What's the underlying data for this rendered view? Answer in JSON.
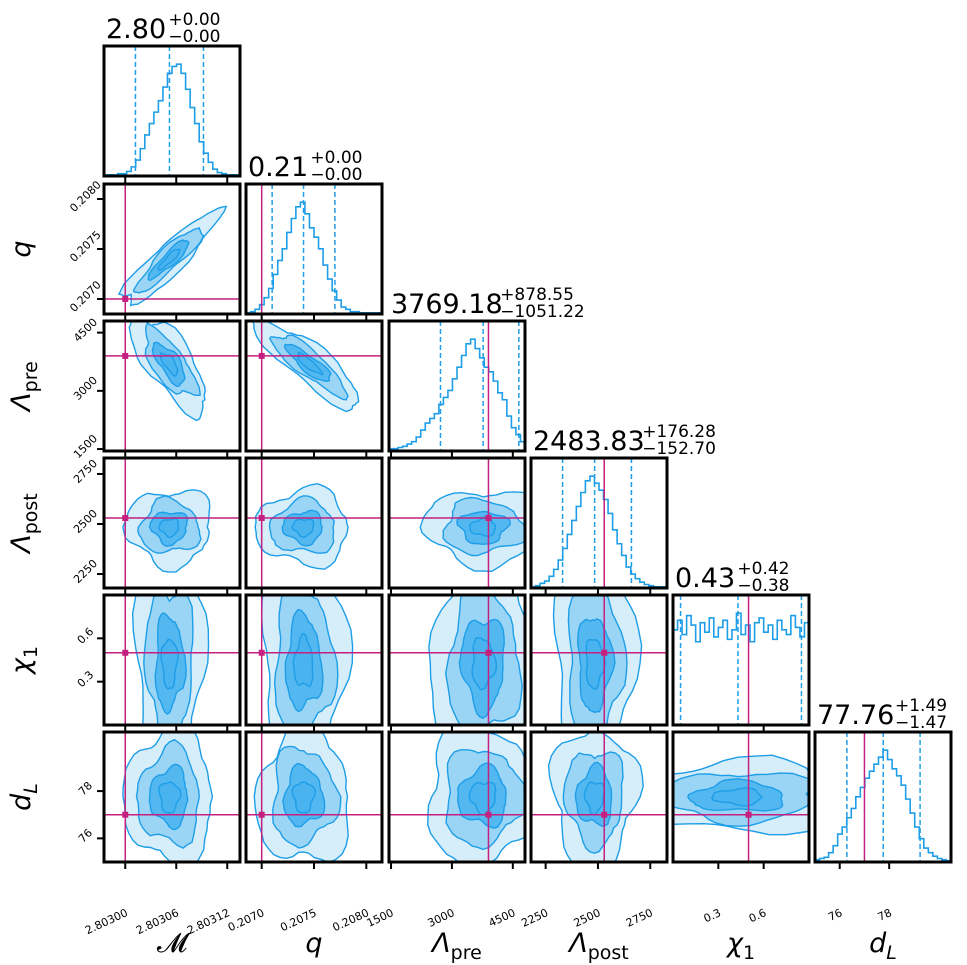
{
  "figure": {
    "type": "corner-plot",
    "colors": {
      "posterior": "#1e9ee8",
      "fill_light": "#cfeaf9",
      "fill_mid": "#8fd0f3",
      "fill_dark": "#47b2ee",
      "truth": "#c42080",
      "frame": "#000000"
    }
  },
  "chart_data": {
    "type": "corner",
    "parameters": [
      {
        "key": "Mc",
        "label": "𝓜",
        "tex": "M",
        "sub": "",
        "title": "2.80",
        "plus": "+0.00",
        "minus": "−0.00",
        "range": [
          2.802975,
          2.803135
        ],
        "truth": 2.803,
        "median": 2.803052,
        "q16": 2.803012,
        "q84": 2.803092,
        "ticks": [
          2.803,
          2.80306,
          2.80312
        ],
        "tick_labels": [
          "2.80300",
          "2.80306",
          "2.80312"
        ],
        "hist": [
          1,
          1,
          1,
          2,
          2,
          4,
          8,
          14,
          24,
          36,
          46,
          56,
          66,
          78,
          90,
          96,
          98,
          90,
          76,
          60,
          46,
          30,
          20,
          12,
          6,
          3,
          2,
          1,
          1,
          1
        ]
      },
      {
        "key": "q",
        "label": "q",
        "tex": "q",
        "sub": "",
        "title": "0.21",
        "plus": "+0.00",
        "minus": "−0.00",
        "range": [
          0.20685,
          0.20815
        ],
        "truth": 0.207,
        "median": 0.2074,
        "q16": 0.2071,
        "q84": 0.2077,
        "ticks": [
          0.207,
          0.2075,
          0.208
        ],
        "tick_labels": [
          "0.2070",
          "0.2075",
          "0.2080"
        ],
        "hist": [
          1,
          2,
          4,
          8,
          14,
          22,
          34,
          46,
          56,
          70,
          82,
          92,
          96,
          86,
          74,
          66,
          56,
          42,
          30,
          20,
          12,
          6,
          4,
          2,
          2,
          1,
          1,
          1,
          1,
          1
        ]
      },
      {
        "key": "Lpre",
        "label": "Λpre",
        "tex": "Λ",
        "sub": "pre",
        "title": "3769.18",
        "plus": "+878.55",
        "minus": "−1051.22",
        "range": [
          1450,
          4800
        ],
        "truth": 3900,
        "median": 3769,
        "q16": 2718,
        "q84": 4648,
        "ticks": [
          1500,
          3000,
          4500
        ],
        "tick_labels": [
          "1500",
          "3000",
          "4500"
        ],
        "hist": [
          2,
          2,
          3,
          4,
          6,
          8,
          12,
          18,
          24,
          28,
          32,
          40,
          46,
          52,
          62,
          72,
          82,
          92,
          96,
          88,
          80,
          72,
          68,
          60,
          50,
          44,
          30,
          20,
          14,
          8
        ]
      },
      {
        "key": "Lpost",
        "label": "Λpost",
        "tex": "Λ",
        "sub": "post",
        "title": "2483.83",
        "plus": "+176.28",
        "minus": "−152.70",
        "range": [
          2180,
          2830
        ],
        "truth": 2530,
        "median": 2484,
        "q16": 2331,
        "q84": 2660,
        "ticks": [
          2250,
          2500,
          2750
        ],
        "tick_labels": [
          "2250",
          "2500",
          "2750"
        ],
        "hist": [
          1,
          2,
          4,
          6,
          10,
          16,
          24,
          34,
          46,
          58,
          70,
          82,
          92,
          96,
          90,
          84,
          76,
          64,
          50,
          38,
          28,
          18,
          12,
          8,
          5,
          3,
          2,
          1,
          1,
          1
        ]
      },
      {
        "key": "chi1",
        "label": "χ1",
        "tex": "χ",
        "sub": "1",
        "title": "0.43",
        "plus": "+0.42",
        "minus": "−0.38",
        "range": [
          0.0,
          0.9
        ],
        "truth": 0.5,
        "median": 0.43,
        "q16": 0.05,
        "q84": 0.85,
        "ticks": [
          0.3,
          0.6
        ],
        "tick_labels": [
          "0.3",
          "0.6"
        ],
        "hist": [
          80,
          88,
          76,
          92,
          84,
          70,
          86,
          78,
          90,
          74,
          82,
          88,
          72,
          80,
          94,
          76,
          84,
          70,
          86,
          90,
          78,
          84,
          72,
          88,
          80,
          76,
          92,
          82,
          74,
          86
        ]
      },
      {
        "key": "dL",
        "label": "dL",
        "tex": "d",
        "sub": "L",
        "title": "77.76",
        "plus": "+1.49",
        "minus": "−1.47",
        "range": [
          75.0,
          80.5
        ],
        "truth": 77.0,
        "median": 77.76,
        "q16": 76.29,
        "q84": 79.25,
        "ticks": [
          76,
          78
        ],
        "tick_labels": [
          "76",
          "78"
        ],
        "hist": [
          2,
          3,
          4,
          8,
          14,
          24,
          30,
          38,
          46,
          56,
          64,
          72,
          78,
          84,
          90,
          96,
          88,
          80,
          74,
          66,
          54,
          42,
          30,
          20,
          12,
          8,
          5,
          3,
          2,
          1
        ]
      }
    ],
    "panels_2d": [
      {
        "row": 1,
        "col": 0,
        "center": [
          2.803052,
          0.2074
        ],
        "sigma": [
          2.8e-05,
          0.00023
        ],
        "rho": 0.9
      },
      {
        "row": 2,
        "col": 0,
        "center": [
          2.803052,
          3700
        ],
        "sigma": [
          2.2e-05,
          620
        ],
        "rho": -0.7
      },
      {
        "row": 2,
        "col": 1,
        "center": [
          0.20745,
          3700
        ],
        "sigma": [
          0.00025,
          560
        ],
        "rho": -0.85
      },
      {
        "row": 3,
        "col": 0,
        "center": [
          2.803052,
          2484
        ],
        "sigma": [
          2.5e-05,
          95
        ],
        "rho": 0.0
      },
      {
        "row": 3,
        "col": 1,
        "center": [
          0.2074,
          2484
        ],
        "sigma": [
          0.00022,
          95
        ],
        "rho": 0.0
      },
      {
        "row": 3,
        "col": 2,
        "center": [
          3769,
          2484
        ],
        "sigma": [
          700,
          95
        ],
        "rho": 0.0
      },
      {
        "row": 4,
        "col": 0,
        "center": [
          2.803052,
          0.43
        ],
        "sigma": [
          2e-05,
          0.38
        ],
        "rho": 0.0
      },
      {
        "row": 4,
        "col": 1,
        "center": [
          0.2074,
          0.43
        ],
        "sigma": [
          0.0002,
          0.38
        ],
        "rho": 0.0
      },
      {
        "row": 4,
        "col": 2,
        "center": [
          3769,
          0.43
        ],
        "sigma": [
          620,
          0.38
        ],
        "rho": 0.0
      },
      {
        "row": 4,
        "col": 3,
        "center": [
          2484,
          0.43
        ],
        "sigma": [
          95,
          0.38
        ],
        "rho": 0.0
      },
      {
        "row": 5,
        "col": 0,
        "center": [
          2.803052,
          77.76
        ],
        "sigma": [
          2.6e-05,
          1.45
        ],
        "rho": 0.0
      },
      {
        "row": 5,
        "col": 1,
        "center": [
          0.2074,
          77.76
        ],
        "sigma": [
          0.00022,
          1.45
        ],
        "rho": 0.0
      },
      {
        "row": 5,
        "col": 2,
        "center": [
          3769,
          77.76
        ],
        "sigma": [
          700,
          1.45
        ],
        "rho": 0.0
      },
      {
        "row": 5,
        "col": 3,
        "center": [
          2484,
          77.76
        ],
        "sigma": [
          100,
          1.45
        ],
        "rho": 0.0
      },
      {
        "row": 5,
        "col": 4,
        "center": [
          0.43,
          77.76
        ],
        "sigma": [
          0.36,
          0.75
        ],
        "rho": 0.0
      }
    ]
  }
}
